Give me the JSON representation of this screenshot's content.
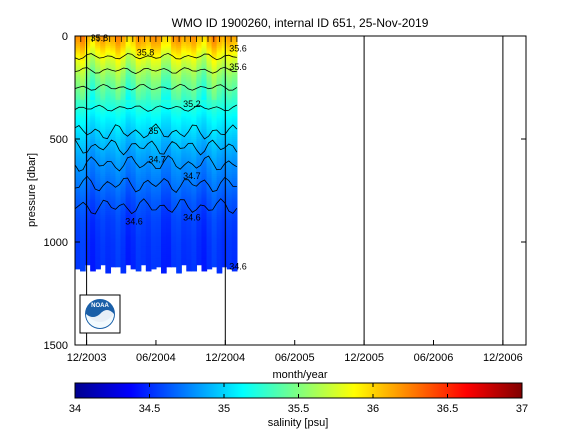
{
  "chart_data": [
    {
      "type": "heatmap",
      "title": "WMO ID 1900260, internal ID 651, 25-Nov-2019",
      "xlabel": "month/year",
      "ylabel": "pressure [dbar]",
      "x_ticks": [
        "12/2003",
        "06/2004",
        "12/2004",
        "06/2005",
        "12/2005",
        "06/2006",
        "12/2006"
      ],
      "y_ticks": [
        "0",
        "500",
        "1000",
        "1500"
      ],
      "ylim": [
        0,
        1500
      ],
      "y_reversed": true,
      "x_range": [
        "2003-11",
        "2007-02"
      ],
      "data_coverage": {
        "x_start": "2003-11",
        "x_end": "2005-01",
        "max_pressure": 1150
      },
      "vertical_lines": [
        "2003-12",
        "2004-12",
        "2005-12",
        "2006-12",
        "2007-02"
      ],
      "contour_labels": [
        {
          "text": "35.8",
          "x": "2003-12",
          "y": 10
        },
        {
          "text": "35.8",
          "x": "2004-04",
          "y": 80
        },
        {
          "text": "35.6",
          "x": "2004-12",
          "y": 60
        },
        {
          "text": "35.6",
          "x": "2004-12",
          "y": 150
        },
        {
          "text": "35.2",
          "x": "2004-08",
          "y": 330
        },
        {
          "text": "35",
          "x": "2004-05",
          "y": 460
        },
        {
          "text": "34.7",
          "x": "2004-05",
          "y": 600
        },
        {
          "text": "34.7",
          "x": "2004-08",
          "y": 680
        },
        {
          "text": "34.6",
          "x": "2004-03",
          "y": 900
        },
        {
          "text": "34.6",
          "x": "2004-08",
          "y": 880
        },
        {
          "text": "34.6",
          "x": "2004-12",
          "y": 1120
        }
      ],
      "salinity_profile": [
        {
          "p": 0,
          "s": 36.15
        },
        {
          "p": 50,
          "s": 36.0
        },
        {
          "p": 100,
          "s": 35.8
        },
        {
          "p": 200,
          "s": 35.5
        },
        {
          "p": 300,
          "s": 35.3
        },
        {
          "p": 400,
          "s": 35.1
        },
        {
          "p": 500,
          "s": 34.95
        },
        {
          "p": 600,
          "s": 34.82
        },
        {
          "p": 700,
          "s": 34.72
        },
        {
          "p": 800,
          "s": 34.62
        },
        {
          "p": 900,
          "s": 34.55
        },
        {
          "p": 1000,
          "s": 34.52
        },
        {
          "p": 1150,
          "s": 34.5
        }
      ]
    },
    {
      "type": "heatmap",
      "role": "colorbar",
      "xlabel": "salinity [psu]",
      "range": [
        34,
        37
      ],
      "ticks": [
        "34",
        "34.5",
        "35",
        "35.5",
        "36",
        "36.5",
        "37"
      ]
    }
  ],
  "logo": {
    "text": "NOAA"
  }
}
